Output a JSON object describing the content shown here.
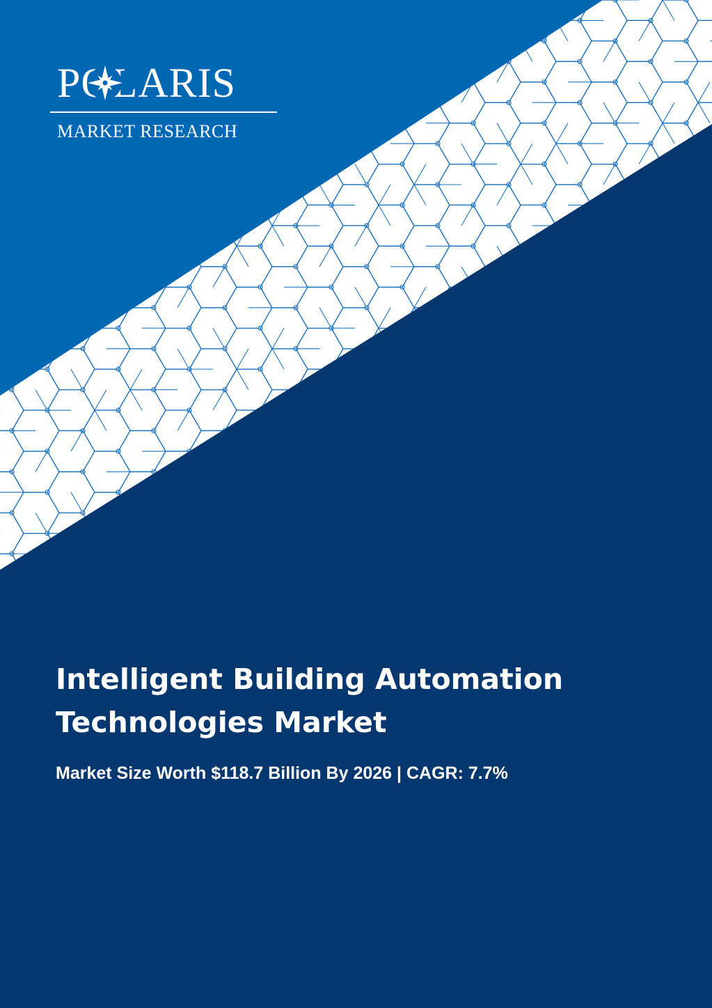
{
  "brand": {
    "name": "POLARIS",
    "tagline": "MARKET RESEARCH"
  },
  "report": {
    "title_line1": "Intelligent Building Automation",
    "title_line2": "Technologies Market",
    "subtitle": "Market Size Worth $118.7 Billion By 2026 | CAGR: 7.7%"
  },
  "colors": {
    "top_blue": "#0067b3",
    "navy": "#06376f",
    "band_white": "#ffffff",
    "lattice_blue": "#1e73bd"
  },
  "icons": {
    "logo_mark": "compass-star-icon",
    "pattern": "hexagon-lattice-pattern"
  }
}
